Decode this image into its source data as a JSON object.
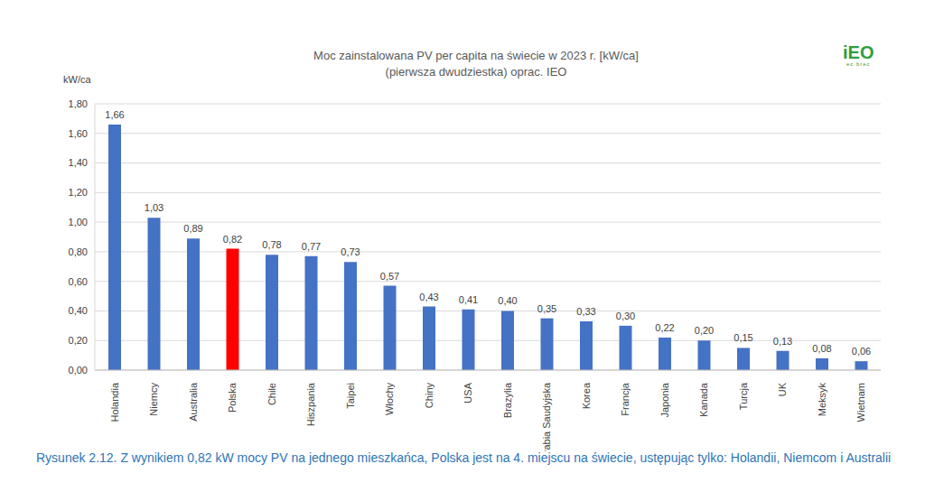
{
  "chart_data": {
    "type": "bar",
    "title": "Moc zainstalowana PV per capita na świecie w 2023 r. [kW/ca]",
    "subtitle": "(pierwsza dwudziestka) oprac. IEO",
    "y_label": "kW/ca",
    "logo": "iEO",
    "logo_tagline": "ec brec",
    "caption": "Rysunek 2.12. Z wynikiem 0,82 kW mocy PV na jednego mieszkańca, Polska jest na 4. miejscu na świecie, ustępując tylko: Holandii, Niemcom i Australii",
    "categories": [
      "Holandia",
      "Niemcy",
      "Australia",
      "Polska",
      "Chile",
      "Hiszpania",
      "Taipei",
      "Włochy",
      "Chiny",
      "USA",
      "Brazylia",
      "Arabia Saudyjska",
      "Korea",
      "Francja",
      "Japonia",
      "Kanada",
      "Turcja",
      "UK",
      "Meksyk",
      "Wietnam"
    ],
    "values": [
      1.66,
      1.03,
      0.89,
      0.82,
      0.78,
      0.77,
      0.73,
      0.57,
      0.43,
      0.41,
      0.4,
      0.35,
      0.33,
      0.3,
      0.22,
      0.2,
      0.15,
      0.13,
      0.08,
      0.06
    ],
    "value_labels": [
      "1,66",
      "1,03",
      "0,89",
      "0,82",
      "0,78",
      "0,77",
      "0,73",
      "0,57",
      "0,43",
      "0,41",
      "0,40",
      "0,35",
      "0,33",
      "0,30",
      "0,22",
      "0,20",
      "0,15",
      "0,13",
      "0,08",
      "0,06"
    ],
    "colors": [
      "#4472c4",
      "#4472c4",
      "#4472c4",
      "#ff0000",
      "#4472c4",
      "#4472c4",
      "#4472c4",
      "#4472c4",
      "#4472c4",
      "#4472c4",
      "#4472c4",
      "#4472c4",
      "#4472c4",
      "#4472c4",
      "#4472c4",
      "#4472c4",
      "#4472c4",
      "#4472c4",
      "#4472c4",
      "#4472c4"
    ],
    "ylim": [
      0,
      1.8
    ],
    "yticks": [
      {
        "value": 0,
        "label": "0,00"
      },
      {
        "value": 0.2,
        "label": "0,20"
      },
      {
        "value": 0.4,
        "label": "0,40"
      },
      {
        "value": 0.6,
        "label": "0,60"
      },
      {
        "value": 0.8,
        "label": "0,80"
      },
      {
        "value": 1.0,
        "label": "1,00"
      },
      {
        "value": 1.2,
        "label": "1,20"
      },
      {
        "value": 1.4,
        "label": "1,40"
      },
      {
        "value": 1.6,
        "label": "1,60"
      },
      {
        "value": 1.8,
        "label": "1,80"
      }
    ],
    "grid": true,
    "data_labels": true
  }
}
